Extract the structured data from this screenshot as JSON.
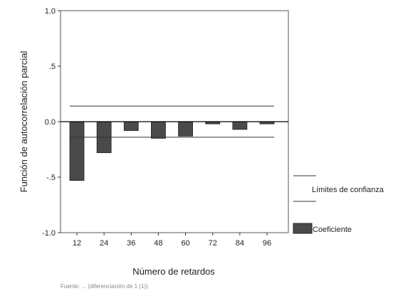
{
  "chart_data": {
    "type": "bar",
    "categories": [
      "12",
      "24",
      "36",
      "48",
      "60",
      "72",
      "84",
      "96"
    ],
    "values": [
      -0.53,
      -0.28,
      -0.08,
      -0.15,
      -0.13,
      -0.02,
      -0.07,
      -0.02
    ],
    "xlabel": "Número de retardos",
    "ylabel": "Función de autocorrelación parcial",
    "ylim": [
      -1.0,
      1.0
    ],
    "yticks": [
      1.0,
      0.5,
      0.0,
      -0.5,
      -1.0
    ],
    "ytick_labels": [
      "1.0",
      ".5",
      "0.0",
      "-.5",
      "-1.0"
    ],
    "confidence_limits": [
      0.14,
      -0.14
    ],
    "legend": {
      "position": "right",
      "confidence_label": "Límites de confianza",
      "coefficient_label": "Coeficiente"
    },
    "colors": {
      "bar": "#4a4a4a",
      "line": "#333333",
      "zero": "#000000"
    }
  },
  "footnote": "Fuente: ... (diferenciación de 1 (1))"
}
